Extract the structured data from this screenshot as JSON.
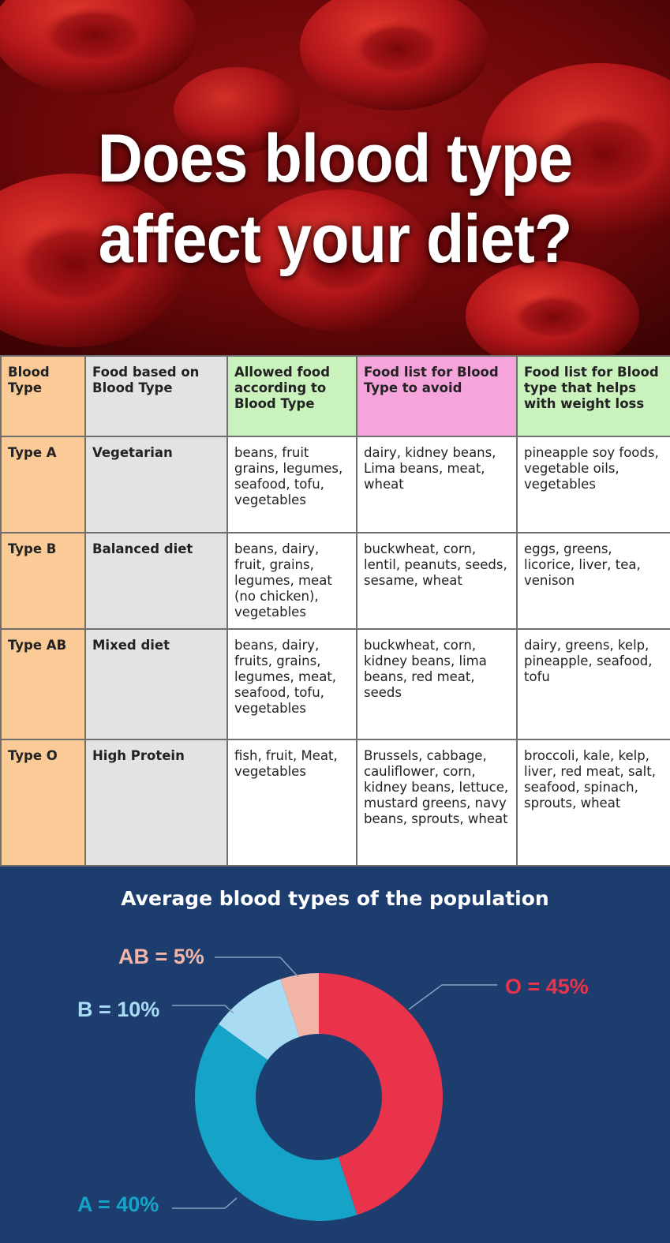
{
  "hero": {
    "title_line1": "Does blood type",
    "title_line2": "affect your diet?"
  },
  "table": {
    "headers": [
      "Blood Type",
      "Food based on Blood Type",
      "Allowed food according to Blood Type",
      "Food list for Blood Type to avoid",
      "Food list for Blood type that helps with weight loss"
    ],
    "rows": [
      [
        "Type A",
        "Vegetarian",
        "beans, fruit grains, legumes, seafood, tofu, vegetables",
        "dairy, kidney beans, Lima beans, meat, wheat",
        "pineapple soy foods, vegetable oils, vegetables"
      ],
      [
        "Type B",
        "Balanced diet",
        "beans, dairy, fruit, grains, legumes, meat (no chicken), vegetables",
        "buckwheat, corn, lentil, peanuts, seeds, sesame, wheat",
        "eggs, greens, licorice, liver, tea, venison"
      ],
      [
        "Type AB",
        "Mixed diet",
        "beans, dairy, fruits, grains, legumes, meat, seafood, tofu, vegetables",
        "buckwheat, corn, kidney beans, lima beans, red meat, seeds",
        "dairy, greens, kelp, pineapple, seafood, tofu"
      ],
      [
        "Type O",
        "High Protein",
        "fish, fruit, Meat, vegetables",
        "Brussels, cabbage, cauliflower, corn, kidney beans, lettuce, mustard greens, navy beans, sprouts, wheat",
        "broccoli, kale, kelp, liver, red meat, salt, seafood, spinach, sprouts, wheat"
      ]
    ]
  },
  "chart_data": {
    "type": "pie",
    "title": "Average blood types of the population",
    "slices": [
      {
        "label": "O = 45%",
        "name": "O",
        "value": 45,
        "color": "#e8334a"
      },
      {
        "label": "A = 40%",
        "name": "A",
        "value": 40,
        "color": "#16a3c8"
      },
      {
        "label": "B = 10%",
        "name": "B",
        "value": 10,
        "color": "#a9dcf3"
      },
      {
        "label": "AB = 5%",
        "name": "AB",
        "value": 5,
        "color": "#f3b5a8"
      }
    ]
  },
  "colors": {
    "background": "#1d3d6e",
    "leader_line": "#8aa0bf"
  }
}
